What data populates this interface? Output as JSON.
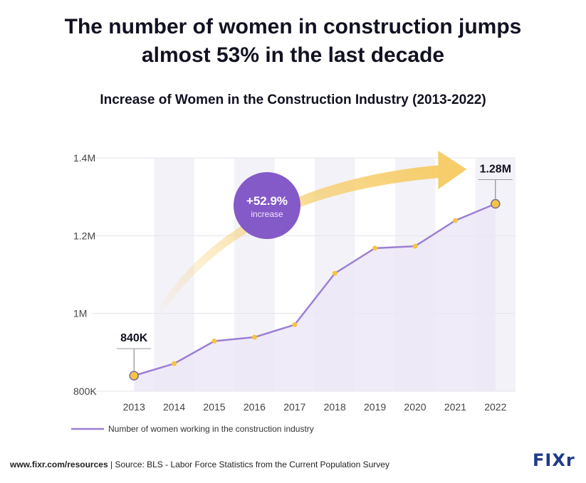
{
  "headline": {
    "line1": "The number of women in construction jumps",
    "line2": "almost 53% in the last decade"
  },
  "chart_data": {
    "type": "line",
    "title": "Increase of Women in the Construction Industry (2013-2022)",
    "x": [
      "2013",
      "2014",
      "2015",
      "2016",
      "2017",
      "2018",
      "2019",
      "2020",
      "2021",
      "2022"
    ],
    "series": [
      {
        "name": "Number of women working in the construction industry",
        "values": [
          840000,
          871000,
          929000,
          939000,
          971000,
          1103000,
          1168000,
          1173000,
          1239000,
          1282000
        ]
      }
    ],
    "ylim": [
      800000,
      1400000
    ],
    "yticks": [
      {
        "value": 800000,
        "label": "800K"
      },
      {
        "value": 1000000,
        "label": "1M"
      },
      {
        "value": 1200000,
        "label": "1.2M"
      },
      {
        "value": 1400000,
        "label": "1.4M"
      }
    ],
    "grid": true,
    "legend_position": "bottom-left",
    "annotations": {
      "start_label": "840K",
      "end_label": "1.28M",
      "badge_value": "+52.9%",
      "badge_text": "increase"
    },
    "colors": {
      "line": "#9b7fd4",
      "marker": "#f5c542",
      "badge": "#8459c8",
      "arrow": "#f6cd6a",
      "band": "#f3f2f8",
      "area": "#ece6f6"
    }
  },
  "footer": {
    "site": "www.fixr.com/resources",
    "separator": "|",
    "source": "Source: BLS - Labor Force Statistics from the Current Population Survey"
  },
  "logo": {
    "text": "FIXr"
  }
}
